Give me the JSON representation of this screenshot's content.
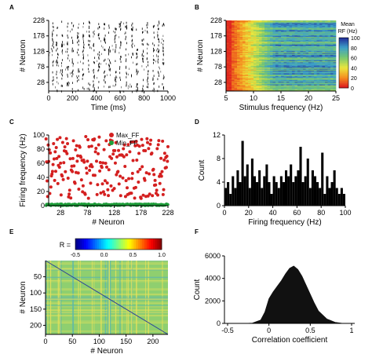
{
  "panels": {
    "A": {
      "letter": "A",
      "type": "raster",
      "xlabel": "Time (ms)",
      "ylabel": "# Neuron",
      "xticks": [
        0,
        200,
        400,
        600,
        800,
        1000
      ],
      "yticks": [
        28,
        78,
        128,
        178,
        228
      ],
      "xlim": [
        0,
        1000
      ],
      "ylim": [
        0,
        228
      ]
    },
    "B": {
      "letter": "B",
      "type": "heatmap",
      "xlabel": "Stimulus frequency (Hz)",
      "ylabel": "# Neuron",
      "xticks": [
        5,
        10,
        15,
        20,
        25
      ],
      "yticks": [
        28,
        78,
        128,
        178,
        228
      ],
      "xlim": [
        5,
        25
      ],
      "ylim": [
        0,
        228
      ],
      "colorbar": {
        "title_line1": "Mean",
        "title_line2": "RF (Hz)",
        "ticks": [
          0,
          20,
          40,
          60,
          80,
          100
        ]
      }
    },
    "C": {
      "letter": "C",
      "type": "scatter",
      "xlabel": "# Neuron",
      "ylabel": "Firing frequency (Hz)",
      "xticks": [
        28,
        78,
        128,
        178,
        228
      ],
      "yticks": [
        0,
        20,
        40,
        60,
        80,
        100
      ],
      "xlim": [
        0,
        228
      ],
      "ylim": [
        0,
        100
      ],
      "legend": [
        {
          "name": "Max_FF",
          "color": "#d42020"
        },
        {
          "name": "Min_FF",
          "color": "#1e9e3a"
        }
      ]
    },
    "D": {
      "letter": "D",
      "type": "bar",
      "xlabel": "Firing frequency (Hz)",
      "ylabel": "Count",
      "xticks": [
        0,
        20,
        40,
        60,
        80,
        100
      ],
      "yticks": [
        0,
        4,
        8,
        12
      ],
      "xlim": [
        0,
        100
      ],
      "ylim": [
        0,
        12
      ]
    },
    "E": {
      "letter": "E",
      "type": "heatmap",
      "xlabel": "# Neuron",
      "ylabel": "# Neuron",
      "xticks": [
        0,
        50,
        100,
        150,
        200
      ],
      "yticks": [
        50,
        100,
        150,
        200
      ],
      "xlim": [
        0,
        228
      ],
      "ylim": [
        0,
        228
      ],
      "colorbar": {
        "prefix": "R =",
        "ticks": [
          "-0.5",
          "0.0",
          "0.5",
          "1.0"
        ]
      }
    },
    "F": {
      "letter": "F",
      "type": "area",
      "xlabel": "Correlation coefficient",
      "ylabel": "Count",
      "xticks": [
        "-0.5",
        "0",
        "0.5",
        "1"
      ],
      "yticks": [
        0,
        2000,
        4000,
        6000
      ],
      "xlim": [
        -0.5,
        1
      ],
      "ylim": [
        0,
        6000
      ]
    }
  },
  "colors": {
    "max_ff": "#d42020",
    "min_ff": "#1e9e3a",
    "bar": "#000000",
    "area": "#111111",
    "e_base": "#8fcf6f"
  },
  "chart_data": [
    {
      "panel": "A",
      "type": "scatter",
      "title": "",
      "xlabel": "Time (ms)",
      "ylabel": "# Neuron",
      "xlim": [
        0,
        1000
      ],
      "ylim": [
        0,
        228
      ],
      "burst_times_ms": [
        35,
        70,
        110,
        160,
        200,
        245,
        290,
        340,
        380,
        420,
        470,
        510,
        560,
        600,
        650,
        700,
        740,
        790,
        830,
        880,
        920,
        960
      ]
    },
    {
      "panel": "B",
      "type": "heatmap",
      "title": "",
      "xlabel": "Stimulus frequency (Hz)",
      "ylabel": "# Neuron",
      "xlim": [
        5,
        25
      ],
      "ylim": [
        0,
        228
      ],
      "color_range": [
        0,
        100
      ]
    },
    {
      "panel": "C",
      "type": "scatter",
      "title": "",
      "xlabel": "# Neuron",
      "ylabel": "Firing frequency (Hz)",
      "xlim": [
        0,
        228
      ],
      "ylim": [
        0,
        100
      ],
      "series": [
        {
          "name": "Max_FF",
          "note_range": [
            10,
            100
          ]
        },
        {
          "name": "Min_FF",
          "note_range": [
            0,
            3
          ]
        }
      ]
    },
    {
      "panel": "D",
      "type": "bar",
      "title": "",
      "xlabel": "Firing frequency (Hz)",
      "ylabel": "Count",
      "xlim": [
        0,
        100
      ],
      "ylim": [
        0,
        12
      ],
      "bin_start": 0,
      "bin_width": 2,
      "values": [
        3,
        4,
        2,
        5,
        3,
        6,
        4,
        11,
        5,
        7,
        3,
        8,
        5,
        4,
        6,
        3,
        5,
        7,
        4,
        2,
        5,
        4,
        3,
        5,
        4,
        6,
        5,
        7,
        4,
        5,
        6,
        10,
        4,
        5,
        8,
        3,
        6,
        5,
        4,
        3,
        9,
        2,
        5,
        3,
        4,
        6,
        3,
        2,
        3,
        2
      ]
    },
    {
      "panel": "E",
      "type": "heatmap",
      "title": "",
      "xlabel": "# Neuron",
      "ylabel": "# Neuron",
      "xlim": [
        0,
        228
      ],
      "ylim": [
        0,
        228
      ],
      "color_range": [
        -0.5,
        1.0
      ]
    },
    {
      "panel": "F",
      "type": "area",
      "title": "",
      "xlabel": "Correlation coefficient",
      "ylabel": "Count",
      "xlim": [
        -0.5,
        1
      ],
      "ylim": [
        0,
        6000
      ],
      "x": [
        -0.5,
        -0.4,
        -0.3,
        -0.2,
        -0.1,
        -0.05,
        0.0,
        0.05,
        0.1,
        0.15,
        0.2,
        0.25,
        0.3,
        0.35,
        0.4,
        0.45,
        0.5,
        0.55,
        0.6,
        0.7,
        0.8,
        0.9,
        1.0
      ],
      "y": [
        0,
        0,
        0,
        30,
        300,
        1000,
        2200,
        2800,
        3300,
        3800,
        4400,
        4900,
        5100,
        4800,
        4200,
        3400,
        2600,
        1800,
        1100,
        400,
        100,
        0,
        0
      ]
    }
  ]
}
